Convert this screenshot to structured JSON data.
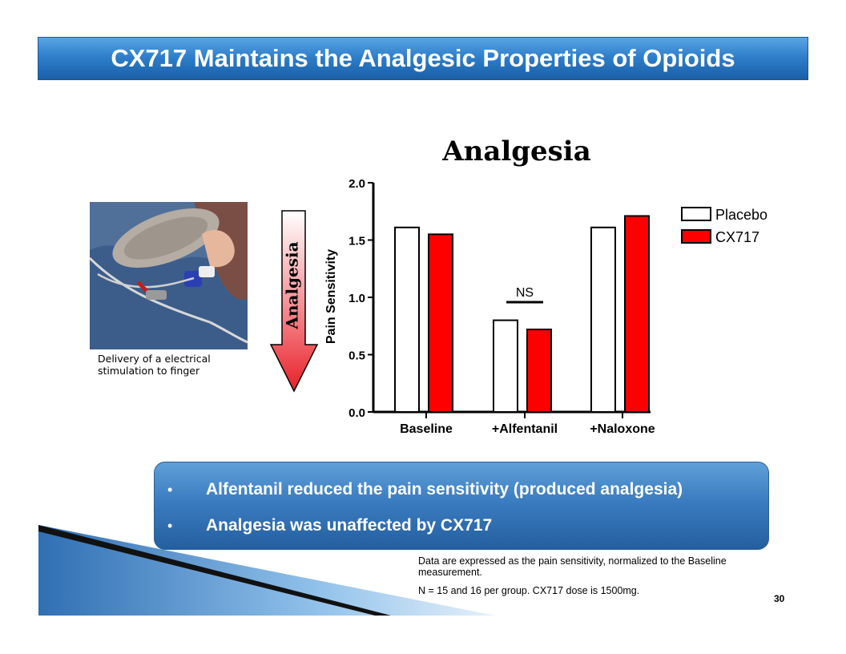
{
  "slide": {
    "title": "CX717 Maintains the Analgesic Properties of Opioids",
    "page_number": "30"
  },
  "photo": {
    "caption_line1": "Delivery of a electrical",
    "caption_line2": "stimulation to finger"
  },
  "arrow": {
    "label": "Analgesia",
    "color": "#e8202a"
  },
  "chart_data": {
    "type": "bar",
    "title": "Analgesia",
    "ylabel": "Pain Sensitivity",
    "xlabel": "",
    "ylim": [
      0,
      2.0
    ],
    "yticks": [
      "0.0",
      "0.5",
      "1.0",
      "1.5",
      "2.0"
    ],
    "categories": [
      "Baseline",
      "+Alfentanil",
      "+Naloxone"
    ],
    "series": [
      {
        "name": "Placebo",
        "color": "#ffffff",
        "values": [
          1.61,
          0.8,
          1.61
        ]
      },
      {
        "name": "CX717",
        "color": "#ff0000",
        "values": [
          1.55,
          0.72,
          1.71
        ]
      }
    ],
    "legend_position": "top-right",
    "annotations": [
      {
        "text": "NS",
        "category": "+Alfentanil"
      }
    ],
    "grid": false
  },
  "bullets": [
    "Alfentanil reduced the pain sensitivity (produced analgesia)",
    "Analgesia was unaffected by CX717"
  ],
  "bullet_symbol": "•",
  "notes": {
    "line1": "Data are expressed as the pain sensitivity, normalized to the Baseline measurement.",
    "line2": "N = 15 and 16 per group. CX717 dose is 1500mg."
  }
}
